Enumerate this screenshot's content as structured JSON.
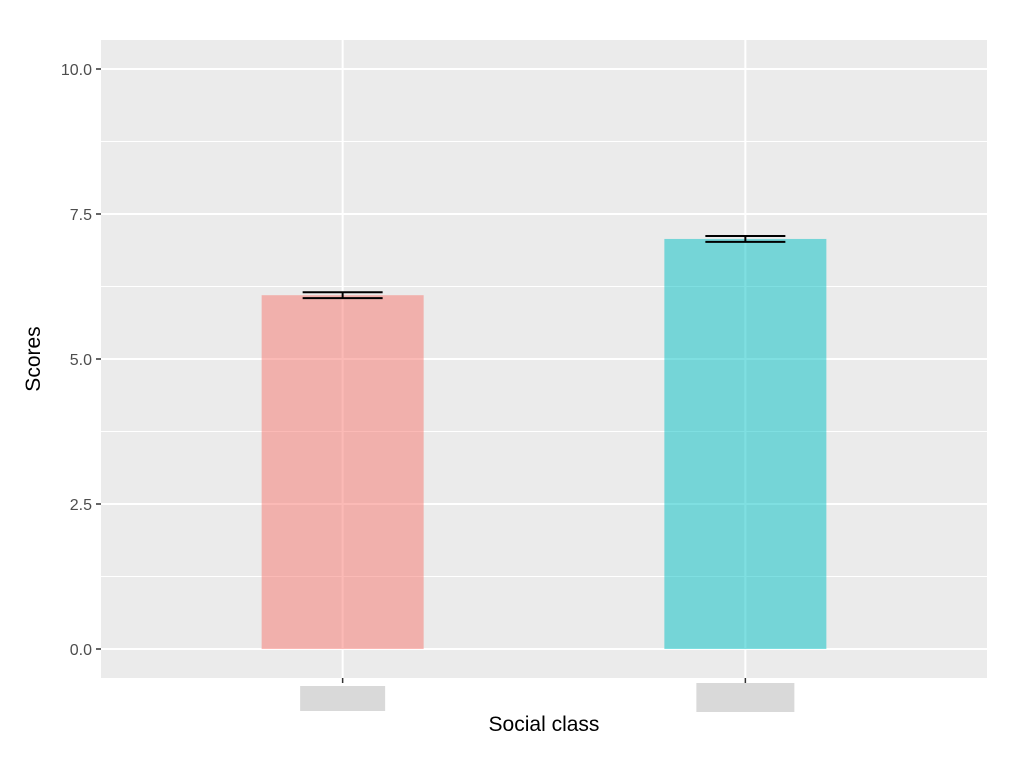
{
  "chart_data": {
    "type": "bar",
    "title": "",
    "xlabel": "Social class",
    "ylabel": "Scores",
    "categories": [
      "",
      ""
    ],
    "series": [
      {
        "values": [
          6.1,
          7.07
        ],
        "errors": [
          0.05,
          0.05
        ]
      }
    ],
    "bar_colors": [
      "#F8766D",
      "#00BFC4"
    ],
    "ylim": [
      -0.5,
      10.5
    ],
    "yticks": [
      0.0,
      2.5,
      5.0,
      7.5,
      10.0
    ],
    "ytick_labels": [
      "0.0",
      "2.5",
      "5.0",
      "7.5",
      "10.0"
    ],
    "grid": true,
    "panel_color": "#EBEBEB",
    "grid_color": "#FFFFFF",
    "category_label_mask_color": "#D9D9D9"
  }
}
